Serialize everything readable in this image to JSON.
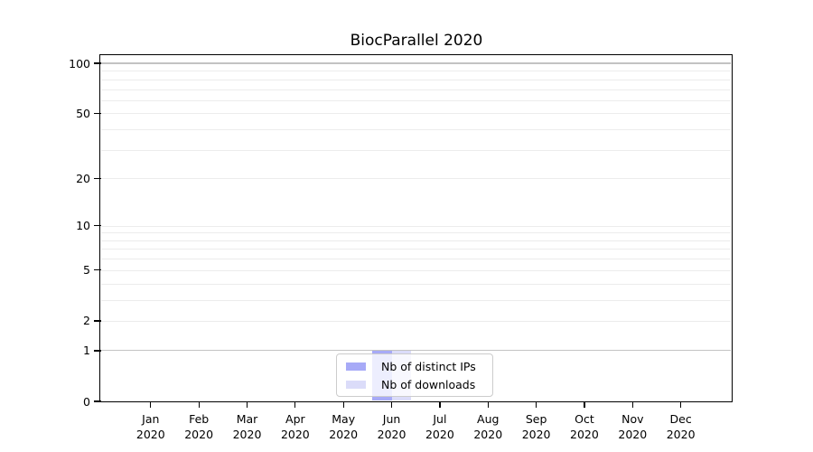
{
  "title": "BiocParallel 2020",
  "chart_data": {
    "type": "bar",
    "title": "BiocParallel 2020",
    "x_categories": [
      "Jan",
      "Feb",
      "Mar",
      "Apr",
      "May",
      "Jun",
      "Jul",
      "Aug",
      "Sep",
      "Oct",
      "Nov",
      "Dec"
    ],
    "x_year": "2020",
    "series": [
      {
        "name": "Nb of distinct IPs",
        "color": "#a7aaf7",
        "values": [
          0,
          0,
          0,
          0,
          0,
          1,
          0,
          0,
          0,
          0,
          0,
          0
        ]
      },
      {
        "name": "Nb of downloads",
        "color": "#dbdcf9",
        "values": [
          0,
          0,
          0,
          0,
          0,
          1,
          0,
          0,
          0,
          0,
          0,
          0
        ]
      }
    ],
    "y_axis": {
      "scale": "log10(1+x)",
      "ticks": [
        100,
        50,
        20,
        10,
        5,
        2,
        1,
        0
      ],
      "major_gridlines": [
        100,
        1
      ],
      "minor_gridlines": [
        90,
        80,
        70,
        60,
        50,
        40,
        30,
        20,
        10,
        9,
        8,
        7,
        6,
        5,
        4,
        3,
        2
      ],
      "range": [
        0,
        110
      ]
    },
    "legend": {
      "position": "lower center",
      "labels": [
        "Nb of distinct IPs",
        "Nb of downloads"
      ]
    },
    "grid": true
  },
  "colors": {
    "axis": "#000000",
    "major_gridline": "#c3c3c3",
    "minor_gridline": "#ececec",
    "background": "#ffffff",
    "legend_border": "#cccccc"
  }
}
